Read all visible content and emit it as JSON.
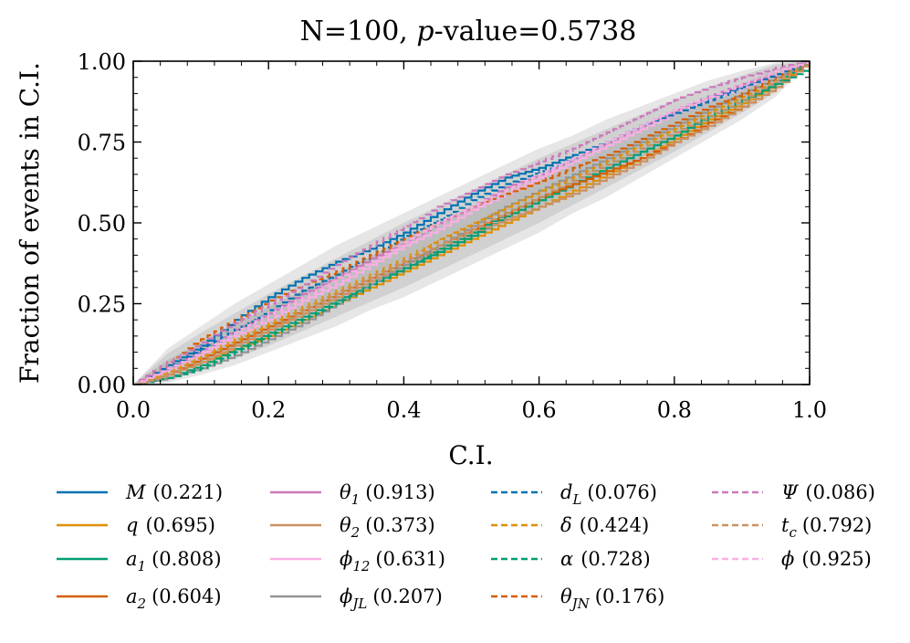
{
  "chart_data": {
    "type": "line",
    "title_parts": [
      "N=100, ",
      "p",
      "-value=0.5738"
    ],
    "xlabel": "C.I.",
    "ylabel": "Fraction of events in C.I.",
    "xlim": [
      0,
      1
    ],
    "ylim": [
      0,
      1
    ],
    "xticks": [
      0.0,
      0.2,
      0.4,
      0.6,
      0.8,
      1.0
    ],
    "xtick_labels": [
      "0.0",
      "0.2",
      "0.4",
      "0.6",
      "0.8",
      "1.0"
    ],
    "yticks": [
      0.0,
      0.25,
      0.5,
      0.75,
      1.0
    ],
    "ytick_labels": [
      "0.00",
      "0.25",
      "0.50",
      "0.75",
      "1.00"
    ],
    "grid": false,
    "legend_position": "below",
    "confidence_bands": {
      "colors": [
        "#e6e6e6",
        "#d1d1d1",
        "#bdbdbd"
      ],
      "x": [
        0.0,
        0.05,
        0.1,
        0.15,
        0.2,
        0.25,
        0.3,
        0.35,
        0.4,
        0.45,
        0.5,
        0.55,
        0.6,
        0.65,
        0.7,
        0.75,
        0.8,
        0.85,
        0.9,
        0.95,
        1.0
      ],
      "bands": [
        {
          "name": "3-sigma",
          "lower": [
            0.0,
            0.005,
            0.03,
            0.06,
            0.1,
            0.14,
            0.18,
            0.23,
            0.27,
            0.32,
            0.37,
            0.42,
            0.47,
            0.53,
            0.58,
            0.64,
            0.7,
            0.76,
            0.82,
            0.89,
            1.0
          ],
          "upper": [
            0.0,
            0.11,
            0.18,
            0.25,
            0.31,
            0.37,
            0.43,
            0.48,
            0.53,
            0.58,
            0.63,
            0.68,
            0.73,
            0.77,
            0.82,
            0.86,
            0.9,
            0.94,
            0.97,
            0.995,
            1.0
          ]
        },
        {
          "name": "2-sigma",
          "lower": [
            0.0,
            0.01,
            0.045,
            0.08,
            0.12,
            0.165,
            0.21,
            0.255,
            0.3,
            0.35,
            0.4,
            0.45,
            0.5,
            0.555,
            0.61,
            0.665,
            0.72,
            0.78,
            0.84,
            0.905,
            1.0
          ],
          "upper": [
            0.0,
            0.095,
            0.16,
            0.22,
            0.28,
            0.335,
            0.39,
            0.445,
            0.5,
            0.55,
            0.6,
            0.65,
            0.7,
            0.745,
            0.79,
            0.835,
            0.88,
            0.92,
            0.955,
            0.99,
            1.0
          ]
        },
        {
          "name": "1-sigma",
          "lower": [
            0.0,
            0.025,
            0.07,
            0.115,
            0.16,
            0.21,
            0.255,
            0.305,
            0.35,
            0.4,
            0.45,
            0.5,
            0.55,
            0.6,
            0.65,
            0.7,
            0.75,
            0.805,
            0.86,
            0.92,
            1.0
          ],
          "upper": [
            0.0,
            0.075,
            0.13,
            0.185,
            0.24,
            0.29,
            0.345,
            0.395,
            0.45,
            0.5,
            0.55,
            0.6,
            0.65,
            0.695,
            0.745,
            0.795,
            0.845,
            0.885,
            0.93,
            0.975,
            1.0
          ]
        }
      ]
    },
    "x": [
      0.0,
      0.05,
      0.1,
      0.15,
      0.2,
      0.25,
      0.3,
      0.35,
      0.4,
      0.45,
      0.5,
      0.55,
      0.6,
      0.65,
      0.7,
      0.75,
      0.8,
      0.85,
      0.9,
      0.95,
      1.0
    ],
    "series": [
      {
        "name": "M",
        "label": "(0.221)",
        "color": "#0173b2",
        "dash": "solid",
        "math": "calM",
        "values": [
          0.0,
          0.06,
          0.12,
          0.2,
          0.27,
          0.33,
          0.38,
          0.42,
          0.47,
          0.53,
          0.59,
          0.64,
          0.67,
          0.71,
          0.75,
          0.8,
          0.85,
          0.89,
          0.92,
          0.96,
          1.0
        ]
      },
      {
        "name": "q",
        "label": "(0.695)",
        "color": "#de8f05",
        "dash": "solid",
        "math": "q",
        "values": [
          0.0,
          0.03,
          0.07,
          0.11,
          0.15,
          0.2,
          0.25,
          0.3,
          0.35,
          0.4,
          0.45,
          0.5,
          0.55,
          0.6,
          0.65,
          0.7,
          0.76,
          0.82,
          0.87,
          0.93,
          1.0
        ]
      },
      {
        "name": "a",
        "sub": "1",
        "label": "(0.808)",
        "color": "#029e73",
        "dash": "solid",
        "math": "a",
        "values": [
          0.0,
          0.02,
          0.06,
          0.11,
          0.16,
          0.21,
          0.26,
          0.31,
          0.36,
          0.41,
          0.46,
          0.52,
          0.57,
          0.62,
          0.67,
          0.72,
          0.77,
          0.83,
          0.88,
          0.94,
          1.0
        ]
      },
      {
        "name": "a",
        "sub": "2",
        "label": "(0.604)",
        "color": "#d55e00",
        "dash": "solid",
        "math": "a",
        "values": [
          0.0,
          0.03,
          0.08,
          0.13,
          0.18,
          0.23,
          0.28,
          0.33,
          0.38,
          0.43,
          0.48,
          0.53,
          0.58,
          0.62,
          0.66,
          0.7,
          0.75,
          0.81,
          0.86,
          0.92,
          1.0
        ]
      },
      {
        "name": "θ",
        "sub": "1",
        "label": "(0.913)",
        "color": "#cc78bc",
        "dash": "solid",
        "math": "θ",
        "values": [
          0.0,
          0.05,
          0.11,
          0.17,
          0.22,
          0.28,
          0.33,
          0.39,
          0.44,
          0.5,
          0.55,
          0.61,
          0.65,
          0.7,
          0.75,
          0.8,
          0.85,
          0.89,
          0.93,
          0.96,
          1.0
        ]
      },
      {
        "name": "θ",
        "sub": "2",
        "label": "(0.373)",
        "color": "#ca9161",
        "dash": "solid",
        "math": "θ",
        "values": [
          0.0,
          0.03,
          0.07,
          0.12,
          0.17,
          0.22,
          0.27,
          0.32,
          0.37,
          0.42,
          0.47,
          0.51,
          0.55,
          0.59,
          0.64,
          0.69,
          0.75,
          0.8,
          0.86,
          0.92,
          1.0
        ]
      },
      {
        "name": "ϕ",
        "sub": "12",
        "label": "(0.631)",
        "color": "#fbafe4",
        "dash": "solid",
        "math": "ϕ",
        "values": [
          0.0,
          0.04,
          0.09,
          0.15,
          0.2,
          0.26,
          0.31,
          0.37,
          0.43,
          0.48,
          0.54,
          0.59,
          0.64,
          0.69,
          0.74,
          0.79,
          0.84,
          0.88,
          0.92,
          0.96,
          1.0
        ]
      },
      {
        "name": "ϕ",
        "sub": "JL",
        "label": "(0.207)",
        "color": "#949494",
        "dash": "solid",
        "math": "ϕ",
        "values": [
          0.0,
          0.02,
          0.05,
          0.09,
          0.14,
          0.19,
          0.25,
          0.31,
          0.37,
          0.43,
          0.49,
          0.55,
          0.6,
          0.65,
          0.7,
          0.75,
          0.8,
          0.85,
          0.9,
          0.95,
          1.0
        ]
      },
      {
        "name": "d",
        "sub": "L",
        "label": "(0.076)",
        "color": "#0173b2",
        "dash": "dashed",
        "math": "d",
        "values": [
          0.0,
          0.05,
          0.11,
          0.17,
          0.23,
          0.29,
          0.34,
          0.4,
          0.46,
          0.51,
          0.57,
          0.62,
          0.66,
          0.7,
          0.75,
          0.8,
          0.84,
          0.88,
          0.92,
          0.96,
          1.0
        ]
      },
      {
        "name": "δ",
        "label": "(0.424)",
        "color": "#de8f05",
        "dash": "dashed",
        "math": "δ",
        "values": [
          0.0,
          0.04,
          0.09,
          0.14,
          0.19,
          0.24,
          0.29,
          0.34,
          0.39,
          0.45,
          0.5,
          0.55,
          0.6,
          0.64,
          0.69,
          0.74,
          0.79,
          0.84,
          0.89,
          0.94,
          1.0
        ]
      },
      {
        "name": "α",
        "label": "(0.728)",
        "color": "#029e73",
        "dash": "dashed",
        "math": "α",
        "values": [
          0.0,
          0.02,
          0.05,
          0.1,
          0.15,
          0.2,
          0.25,
          0.31,
          0.36,
          0.42,
          0.47,
          0.53,
          0.58,
          0.63,
          0.68,
          0.73,
          0.78,
          0.83,
          0.88,
          0.93,
          0.98
        ]
      },
      {
        "name": "θ",
        "sub": "JN",
        "label": "(0.176)",
        "color": "#d55e00",
        "dash": "dashed",
        "math": "θ",
        "values": [
          0.0,
          0.07,
          0.14,
          0.2,
          0.26,
          0.31,
          0.35,
          0.4,
          0.45,
          0.5,
          0.55,
          0.59,
          0.63,
          0.67,
          0.71,
          0.76,
          0.81,
          0.86,
          0.9,
          0.95,
          1.0
        ]
      },
      {
        "name": "Ψ",
        "label": "(0.086)",
        "color": "#cc78bc",
        "dash": "dashed",
        "math": "Ψ",
        "values": [
          0.0,
          0.07,
          0.13,
          0.19,
          0.25,
          0.31,
          0.37,
          0.43,
          0.49,
          0.55,
          0.6,
          0.65,
          0.69,
          0.73,
          0.78,
          0.83,
          0.88,
          0.92,
          0.95,
          0.98,
          1.0
        ]
      },
      {
        "name": "t",
        "sub": "c",
        "label": "(0.792)",
        "color": "#ca9161",
        "dash": "dashed",
        "math": "t",
        "values": [
          0.0,
          0.03,
          0.07,
          0.12,
          0.17,
          0.23,
          0.28,
          0.33,
          0.38,
          0.43,
          0.48,
          0.53,
          0.58,
          0.63,
          0.68,
          0.73,
          0.78,
          0.83,
          0.88,
          0.94,
          1.0
        ]
      },
      {
        "name": "ϕ",
        "label": "(0.925)",
        "color": "#fbafe4",
        "dash": "dashed",
        "math": "ϕ",
        "values": [
          0.0,
          0.05,
          0.1,
          0.16,
          0.22,
          0.27,
          0.33,
          0.38,
          0.44,
          0.5,
          0.55,
          0.6,
          0.65,
          0.7,
          0.75,
          0.8,
          0.85,
          0.89,
          0.93,
          0.97,
          1.0
        ]
      }
    ]
  }
}
